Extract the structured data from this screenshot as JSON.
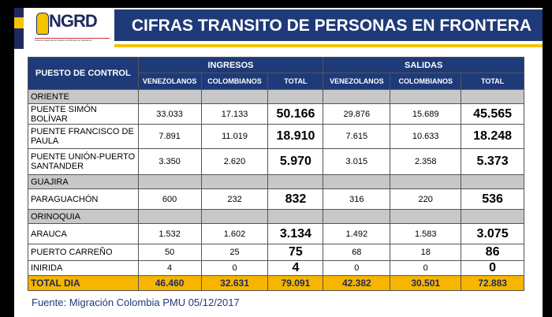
{
  "logo": {
    "name": "NGRD",
    "subtitle": "Sistema Nacional de Gestión del Riesgo de Desastres"
  },
  "title": "CIFRAS TRANSITO DE PERSONAS EN FRONTERA",
  "headers": {
    "puesto": "PUESTO DE CONTROL",
    "ingresos": "INGRESOS",
    "salidas": "SALIDAS",
    "ven": "VENEZOLANOS",
    "col": "COLOMBIANOS",
    "total": "TOTAL"
  },
  "sections": [
    {
      "name": "ORIENTE",
      "rows": [
        {
          "puesto": "PUENTE SIMÓN BOLÍVAR",
          "v": [
            "33.033",
            "17.133",
            "50.166",
            "29.876",
            "15.689",
            "45.565"
          ]
        },
        {
          "puesto": "PUENTE FRANCISCO DE PAULA",
          "v": [
            "7.891",
            "11.019",
            "18.910",
            "7.615",
            "10.633",
            "18.248"
          ]
        },
        {
          "puesto": "PUENTE UNIÓN-PUERTO SANTANDER",
          "v": [
            "3.350",
            "2.620",
            "5.970",
            "3.015",
            "2.358",
            "5.373"
          ]
        }
      ]
    },
    {
      "name": "GUAJIRA",
      "rows": [
        {
          "puesto": "PARAGUACHÓN",
          "v": [
            "600",
            "232",
            "832",
            "316",
            "220",
            "536"
          ]
        }
      ]
    },
    {
      "name": "ORINOQUIA",
      "rows": [
        {
          "puesto": "ARAUCA",
          "v": [
            "1.532",
            "1.602",
            "3.134",
            "1.492",
            "1.583",
            "3.075"
          ]
        },
        {
          "puesto": "PUERTO CARREÑO",
          "v": [
            "50",
            "25",
            "75",
            "68",
            "18",
            "86"
          ]
        },
        {
          "puesto": "INIRIDA",
          "v": [
            "4",
            "0",
            "4",
            "0",
            "0",
            "0"
          ]
        }
      ]
    }
  ],
  "total": {
    "label": "TOTAL DIA",
    "v": [
      "46.460",
      "32.631",
      "79.091",
      "42.382",
      "30.501",
      "72.883"
    ]
  },
  "source": "Fuente: Migración Colombia PMU 05/12/2017"
}
